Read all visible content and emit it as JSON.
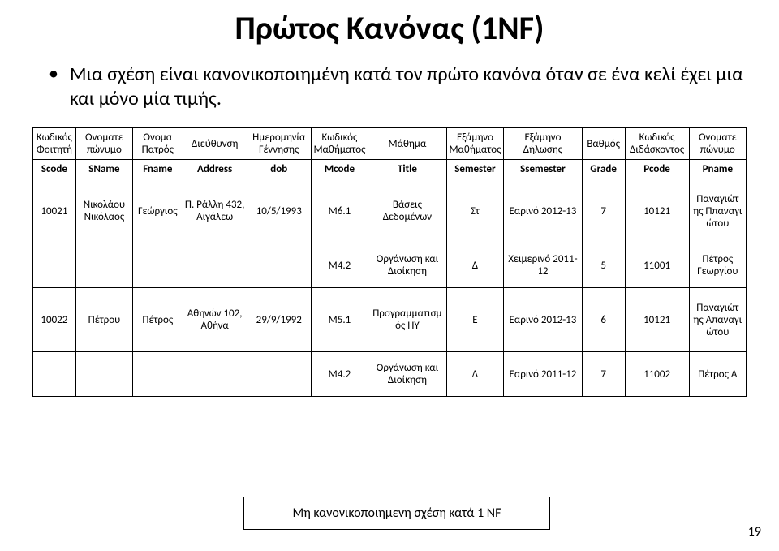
{
  "title": "Πρώτος Κανόνας (1NF)",
  "title_fontsize": 40,
  "bullet": "Μια σχέση είναι κανονικοποιημένη κατά τον πρώτο κανόνα όταν σε ένα κελί έχει μια και μόνο μία τιμής.",
  "header1": [
    "Κωδικός Φοιτητή",
    "Ονοματε πώνυμο",
    "Ονομα Πατρός",
    "Διεύθυνση",
    "Ημερομηνία Γέννησης",
    "Κωδικός Μαθήματος",
    "Μάθημα",
    "Εξάμηνο Μαθήματος",
    "Εξάμηνο Δήλωσης",
    "Βαθμός",
    "Κωδικός Διδάσκοντος",
    "Ονοματε πώνυμο"
  ],
  "header2": [
    "Scode",
    "SName",
    "Fname",
    "Address",
    "dob",
    "Mcode",
    "Title",
    "Semester",
    "Ssemester",
    "Grade",
    "Pcode",
    "Pname"
  ],
  "rows": [
    [
      "10021",
      "Νικολάου Νικόλαος",
      "Γεώργιος",
      "Π. Ράλλη 432, Αιγάλεω",
      "10/5/1993",
      "Μ6.1",
      "Βάσεις Δεδομένων",
      "Στ",
      "Εαρινό 2012-13",
      "7",
      "10121",
      "Παναγιώτ ης Ππαναγι ώτου"
    ],
    [
      "",
      "",
      "",
      "",
      "",
      "Μ4.2",
      "Οργάνωση και Διοίκηση",
      "Δ",
      "Χειμερινό 2011-12",
      "5",
      "11001",
      "Πέτρος Γεωργίου"
    ],
    [
      "10022",
      "Πέτρου",
      "Πέτρος",
      "Αθηνών 102, Αθήνα",
      "29/9/1992",
      "Μ5.1",
      "Προγραμματισμ ός ΗΥ",
      "Ε",
      "Εαρινό 2012-13",
      "6",
      "10121",
      "Παναγιώτ ης Απαναγι ώτου"
    ],
    [
      "",
      "",
      "",
      "",
      "",
      "Μ4.2",
      "Οργάνωση και Διοίκηση",
      "Δ",
      "Εαρινό 2011-12",
      "7",
      "11002",
      "Πέτρος Α"
    ]
  ],
  "col_widths_pct": [
    6,
    8,
    7,
    9,
    9,
    8,
    11,
    8,
    11,
    6,
    9,
    8
  ],
  "caption": "Μη κανονικοποιημενη σχέση κατά 1 NF",
  "page_number": "19",
  "colors": {
    "text": "#000000",
    "border": "#000000",
    "bg": "#ffffff"
  }
}
